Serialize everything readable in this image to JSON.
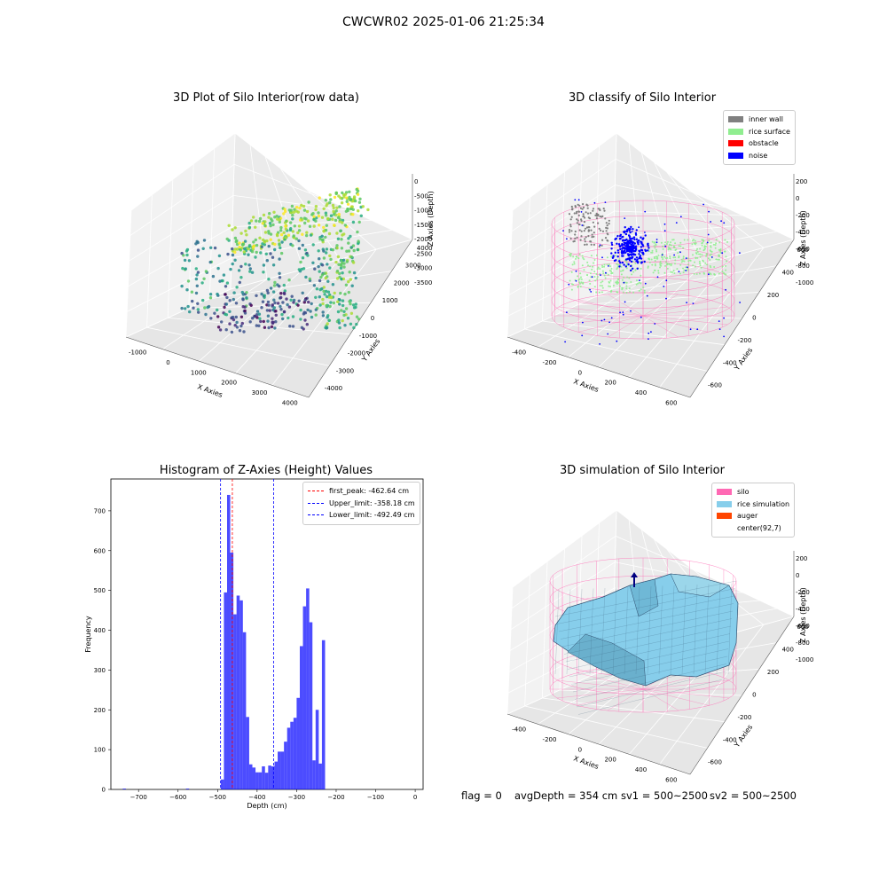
{
  "suptitle": "CWCWR02 2025-01-06 21:25:34",
  "status": {
    "flag": "flag = 0",
    "avg": "avgDepth = 354 cm",
    "sv1": "sv1 = 500~2500",
    "sv2": "sv2 = 500~2500"
  },
  "chart_data": [
    {
      "type": "scatter",
      "title": "3D Plot of Silo Interior(row data)",
      "xlabel": "X Axies",
      "ylabel": "Y Axies",
      "zlabel": "Z Axies (Depth)",
      "x_ticks": [
        "-1000",
        "0",
        "1000",
        "2000",
        "3000",
        "4000"
      ],
      "y_ticks": [
        "4000",
        "3000",
        "2000",
        "1000",
        "0",
        "-1000",
        "-2000",
        "-3000",
        "-4000"
      ],
      "z_ticks": [
        "0",
        "-500",
        "-1000",
        "-1500",
        "-2000",
        "-2500",
        "-3000",
        "-3500"
      ],
      "colormap": "viridis"
    },
    {
      "type": "scatter",
      "title": "3D classify of Silo Interior",
      "xlabel": "X Axies",
      "ylabel": "Y Axies",
      "zlabel": "Z Axies (Depth)",
      "x_ticks": [
        "-400",
        "-200",
        "0",
        "200",
        "400",
        "600"
      ],
      "y_ticks": [
        "600",
        "400",
        "200",
        "0",
        "-200",
        "-400",
        "-600"
      ],
      "z_ticks": [
        "200",
        "0",
        "-200",
        "-400",
        "-600",
        "-800",
        "-1000"
      ],
      "legend": [
        {
          "label": "inner wall",
          "color": "#808080"
        },
        {
          "label": "rice surface",
          "color": "#90ee90"
        },
        {
          "label": "obstacle",
          "color": "#ff0000"
        },
        {
          "label": "noise",
          "color": "#0000ff"
        }
      ]
    },
    {
      "type": "bar",
      "title": "Histogram of Z-Axies (Height) Values",
      "xlabel": "Depth (cm)",
      "ylabel": "Frequency",
      "xlim": [
        -770,
        20
      ],
      "ylim": [
        0,
        780
      ],
      "x_ticks": [
        -700,
        -600,
        -500,
        -400,
        -300,
        -200,
        -100,
        0
      ],
      "y_ticks": [
        0,
        100,
        200,
        300,
        400,
        500,
        600,
        700
      ],
      "bar_color": "#0000ff",
      "bin_width": 8,
      "bins": [
        {
          "x": -740,
          "value": 2
        },
        {
          "x": -580,
          "value": 2
        },
        {
          "x": -492,
          "value": 25
        },
        {
          "x": -484,
          "value": 495
        },
        {
          "x": -476,
          "value": 740
        },
        {
          "x": -468,
          "value": 595
        },
        {
          "x": -460,
          "value": 440
        },
        {
          "x": -452,
          "value": 487
        },
        {
          "x": -444,
          "value": 475
        },
        {
          "x": -436,
          "value": 395
        },
        {
          "x": -428,
          "value": 182
        },
        {
          "x": -420,
          "value": 63
        },
        {
          "x": -412,
          "value": 55
        },
        {
          "x": -404,
          "value": 43
        },
        {
          "x": -396,
          "value": 43
        },
        {
          "x": -388,
          "value": 58
        },
        {
          "x": -380,
          "value": 42
        },
        {
          "x": -372,
          "value": 60
        },
        {
          "x": -364,
          "value": 58
        },
        {
          "x": -356,
          "value": 70
        },
        {
          "x": -348,
          "value": 95
        },
        {
          "x": -340,
          "value": 95
        },
        {
          "x": -332,
          "value": 120
        },
        {
          "x": -324,
          "value": 155
        },
        {
          "x": -316,
          "value": 170
        },
        {
          "x": -308,
          "value": 180
        },
        {
          "x": -300,
          "value": 230
        },
        {
          "x": -292,
          "value": 360
        },
        {
          "x": -284,
          "value": 460
        },
        {
          "x": -276,
          "value": 505
        },
        {
          "x": -268,
          "value": 420
        },
        {
          "x": -260,
          "value": 73
        },
        {
          "x": -252,
          "value": 200
        },
        {
          "x": -244,
          "value": 65
        },
        {
          "x": -236,
          "value": 375
        }
      ],
      "vlines": [
        {
          "label": "first_peak: -462.64 cm",
          "x": -462.64,
          "color": "#ff0000"
        },
        {
          "label": "Upper_limit: -358.18 cm",
          "x": -358.18,
          "color": "#0000ff"
        },
        {
          "label": "Lower_limit: -492.49 cm",
          "x": -492.49,
          "color": "#0000ff"
        }
      ]
    },
    {
      "type": "surface",
      "title": "3D simulation of Silo Interior",
      "xlabel": "X Axies",
      "ylabel": "Y Axies",
      "zlabel": "Z Axies (Depth)",
      "x_ticks": [
        "-400",
        "-200",
        "0",
        "200",
        "400",
        "600"
      ],
      "y_ticks": [
        "600",
        "400",
        "200",
        "0",
        "-200",
        "-400",
        "-600"
      ],
      "z_ticks": [
        "200",
        "0",
        "-200",
        "-400",
        "-600",
        "-800",
        "-1000"
      ],
      "legend": [
        {
          "label": "silo",
          "color": "#ff69b4"
        },
        {
          "label": "rice simulation",
          "color": "#87ceeb"
        },
        {
          "label": "auger",
          "color": "#ff4500"
        },
        {
          "label": "center(92,7)",
          "color": ""
        }
      ]
    }
  ]
}
